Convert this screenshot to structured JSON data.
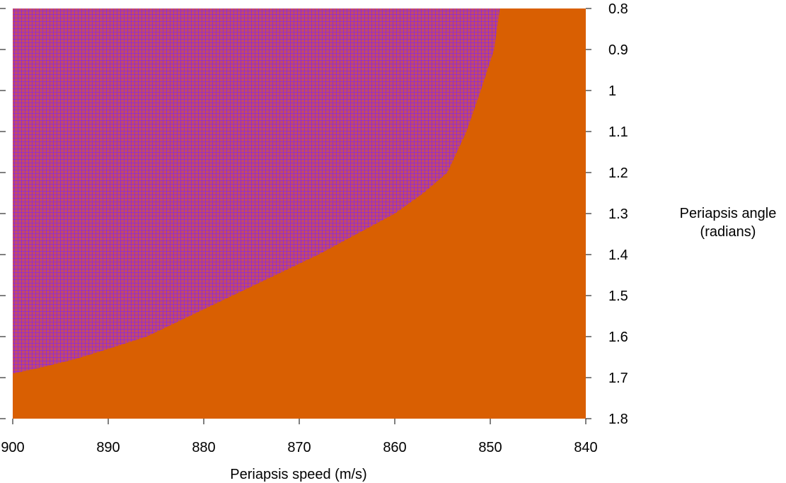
{
  "chart_data": {
    "type": "heatmap",
    "title": "",
    "xlabel": "Periapsis speed (m/s)",
    "ylabel": [
      "Periapsis angle",
      "(radians)"
    ],
    "xlim": [
      900,
      840
    ],
    "ylim": [
      0.8,
      1.8
    ],
    "x_reversed": true,
    "y_reversed": true,
    "x_ticks": [
      900,
      890,
      880,
      870,
      860,
      850,
      840
    ],
    "y_ticks": [
      0.8,
      0.9,
      1,
      1.1,
      1.2,
      1.3,
      1.4,
      1.5,
      1.6,
      1.7,
      1.8
    ],
    "grid": false,
    "legend": "none",
    "colors": {
      "region_inside": "#c2486a",
      "region_inside_mesh": "#8a2be2",
      "region_outside": "#d95f02"
    },
    "boundary": {
      "x": [
        849.0,
        849.6,
        851.0,
        852.5,
        854.5,
        857.0,
        860.0,
        864.0,
        868.0,
        872.5,
        877.0,
        881.5,
        886.0,
        890.0,
        893.5,
        897.0,
        900.0
      ],
      "y": [
        0.8,
        0.9,
        1.0,
        1.1,
        1.2,
        1.25,
        1.3,
        1.35,
        1.4,
        1.45,
        1.5,
        1.55,
        1.6,
        1.63,
        1.655,
        1.675,
        1.69
      ]
    }
  }
}
